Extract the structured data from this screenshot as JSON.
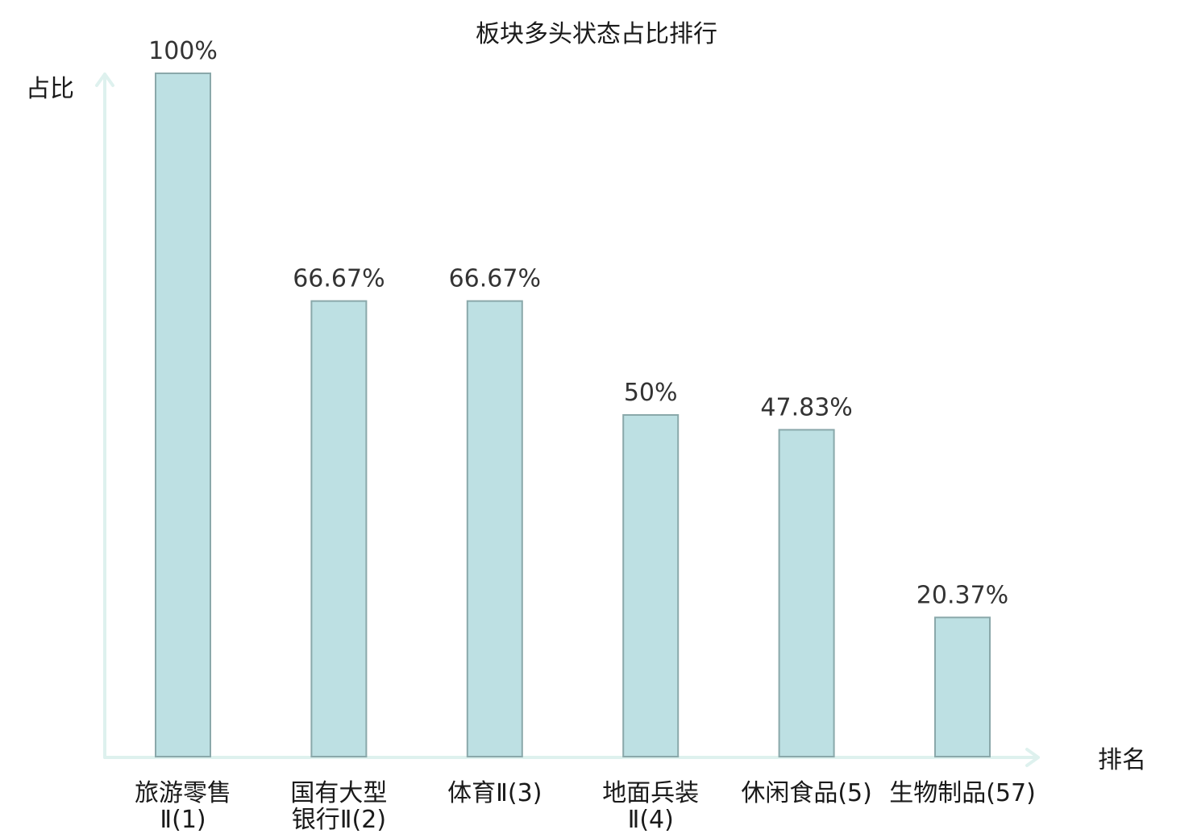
{
  "chart_data": {
    "type": "bar",
    "title": "板块多头状态占比排行",
    "ylabel": "占比",
    "xlabel": "排名",
    "ylim": [
      0,
      100
    ],
    "grid": false,
    "legend": "none",
    "categories": [
      {
        "lines": [
          "旅游零售",
          "Ⅱ(1)"
        ],
        "highlight": false
      },
      {
        "lines": [
          "国有大型",
          "银行Ⅱ(2)"
        ],
        "highlight": false
      },
      {
        "lines": [
          "体育Ⅱ(3)"
        ],
        "highlight": false
      },
      {
        "lines": [
          "地面兵装",
          "Ⅱ(4)"
        ],
        "highlight": false
      },
      {
        "lines": [
          "休闲食品(5)"
        ],
        "highlight": false
      },
      {
        "lines": [
          "生物制品(57)"
        ],
        "highlight": true
      }
    ],
    "values": [
      100,
      66.67,
      66.67,
      50,
      47.83,
      20.37
    ],
    "value_labels": [
      "100%",
      "66.67%",
      "66.67%",
      "50%",
      "47.83%",
      "20.37%"
    ]
  },
  "colors": {
    "bar_fill": "#bde0e3",
    "bar_stroke": "#8aa8aa",
    "axis": "#def1ee",
    "highlight": "#e00000",
    "text": "#1a1a1a"
  }
}
